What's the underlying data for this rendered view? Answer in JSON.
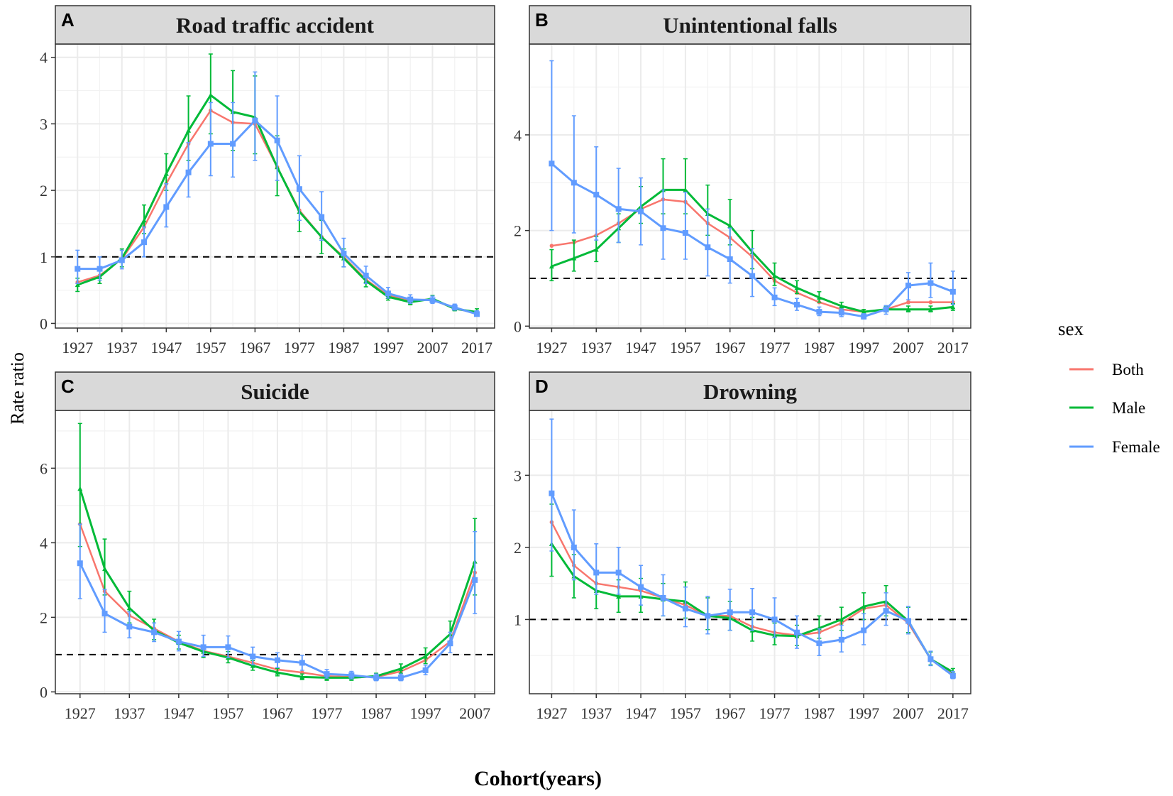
{
  "figure": {
    "ylabel": "Rate ratio",
    "xlabel": "Cohort(years)",
    "legend": {
      "title": "sex",
      "entries": [
        "Both",
        "Male",
        "Female"
      ]
    },
    "colors": {
      "Both": "#F8766D",
      "Male": "#00BA38",
      "Female": "#619CFF",
      "reference_line": "#000000",
      "strip_bg": "#d9d9d9",
      "grid": "#ebebeb"
    }
  },
  "chart_data": [
    {
      "panel": "A",
      "type": "line",
      "title": "Road traffic accident",
      "x": [
        1927,
        1932,
        1937,
        1942,
        1947,
        1952,
        1957,
        1962,
        1967,
        1972,
        1977,
        1982,
        1987,
        1992,
        1997,
        2002,
        2007,
        2012,
        2017
      ],
      "xticks": [
        1927,
        1937,
        1947,
        1957,
        1967,
        1977,
        1987,
        1997,
        2007,
        2017
      ],
      "xticklabels": [
        "1927",
        "1937",
        "1947",
        "1957",
        "1967",
        "1977",
        "1987",
        "1997",
        "2007",
        "2017"
      ],
      "yticks": [
        0,
        1,
        2,
        3,
        4
      ],
      "yticklabels": [
        "0",
        "1",
        "2",
        "3",
        "4"
      ],
      "xlim": [
        1922,
        2021
      ],
      "ylim": [
        -0.07,
        4.2
      ],
      "reference_y": 1,
      "series": [
        {
          "name": "Both",
          "values": [
            0.62,
            0.72,
            0.97,
            1.45,
            2.1,
            2.7,
            3.2,
            3.02,
            3.0,
            2.35,
            1.7,
            1.3,
            1.0,
            0.66,
            0.42,
            0.35,
            0.36,
            0.22,
            0.16
          ]
        },
        {
          "name": "Male",
          "values": [
            0.58,
            0.7,
            0.98,
            1.55,
            2.25,
            2.9,
            3.43,
            3.18,
            3.1,
            2.35,
            1.68,
            1.3,
            0.98,
            0.64,
            0.4,
            0.32,
            0.37,
            0.22,
            0.17
          ],
          "ci_low": [
            0.48,
            0.6,
            0.85,
            1.35,
            2.0,
            2.45,
            2.85,
            2.6,
            2.55,
            1.92,
            1.38,
            1.05,
            0.85,
            0.55,
            0.35,
            0.28,
            0.32,
            0.19,
            0.13
          ],
          "ci_high": [
            0.68,
            0.8,
            1.12,
            1.78,
            2.55,
            3.42,
            4.05,
            3.8,
            3.72,
            2.82,
            2.02,
            1.55,
            1.12,
            0.75,
            0.48,
            0.38,
            0.42,
            0.27,
            0.22
          ]
        },
        {
          "name": "Female",
          "values": [
            0.82,
            0.82,
            0.95,
            1.22,
            1.75,
            2.27,
            2.7,
            2.7,
            3.05,
            2.75,
            2.02,
            1.6,
            1.05,
            0.72,
            0.45,
            0.36,
            0.35,
            0.24,
            0.14
          ],
          "ci_low": [
            0.6,
            0.65,
            0.82,
            1.0,
            1.45,
            1.9,
            2.22,
            2.2,
            2.45,
            2.15,
            1.55,
            1.25,
            0.85,
            0.6,
            0.38,
            0.3,
            0.3,
            0.2,
            0.11
          ],
          "ci_high": [
            1.1,
            1.0,
            1.1,
            1.45,
            2.1,
            2.72,
            3.32,
            3.32,
            3.78,
            3.42,
            2.52,
            1.98,
            1.28,
            0.86,
            0.54,
            0.43,
            0.41,
            0.29,
            0.19
          ]
        }
      ]
    },
    {
      "panel": "B",
      "type": "line",
      "title": "Unintentional falls",
      "x": [
        1927,
        1932,
        1937,
        1942,
        1947,
        1952,
        1957,
        1962,
        1967,
        1972,
        1977,
        1982,
        1987,
        1992,
        1997,
        2002,
        2007,
        2012,
        2017
      ],
      "xticks": [
        1927,
        1937,
        1947,
        1957,
        1967,
        1977,
        1987,
        1997,
        2007,
        2017
      ],
      "xticklabels": [
        "1927",
        "1937",
        "1947",
        "1957",
        "1967",
        "1977",
        "1987",
        "1997",
        "2007",
        "2017"
      ],
      "yticks": [
        0,
        2,
        4
      ],
      "yticklabels": [
        "0",
        "2",
        "4"
      ],
      "xlim": [
        1922,
        2021
      ],
      "ylim": [
        -0.04,
        5.9
      ],
      "reference_y": 1,
      "series": [
        {
          "name": "Both",
          "values": [
            1.68,
            1.75,
            1.9,
            2.15,
            2.45,
            2.65,
            2.6,
            2.15,
            1.85,
            1.45,
            0.95,
            0.7,
            0.5,
            0.35,
            0.3,
            0.35,
            0.5,
            0.5,
            0.5
          ]
        },
        {
          "name": "Male",
          "values": [
            1.25,
            1.42,
            1.6,
            2.05,
            2.5,
            2.85,
            2.85,
            2.35,
            2.1,
            1.55,
            1.05,
            0.8,
            0.6,
            0.42,
            0.3,
            0.35,
            0.35,
            0.35,
            0.4
          ],
          "ci_low": [
            0.95,
            1.15,
            1.35,
            1.75,
            2.15,
            2.35,
            2.35,
            1.9,
            1.7,
            1.2,
            0.85,
            0.68,
            0.5,
            0.36,
            0.26,
            0.3,
            0.3,
            0.3,
            0.33
          ],
          "ci_high": [
            1.6,
            1.8,
            1.88,
            2.35,
            2.92,
            3.5,
            3.5,
            2.95,
            2.65,
            2.0,
            1.32,
            0.95,
            0.72,
            0.5,
            0.35,
            0.42,
            0.42,
            0.42,
            0.47
          ]
        },
        {
          "name": "Female",
          "values": [
            3.4,
            3.0,
            2.75,
            2.45,
            2.4,
            2.05,
            1.95,
            1.65,
            1.4,
            1.05,
            0.6,
            0.45,
            0.3,
            0.28,
            0.2,
            0.35,
            0.85,
            0.9,
            0.72
          ],
          "ci_low": [
            2.0,
            1.95,
            1.8,
            1.75,
            1.7,
            1.4,
            1.4,
            1.05,
            0.9,
            0.62,
            0.43,
            0.33,
            0.22,
            0.2,
            0.15,
            0.25,
            0.55,
            0.6,
            0.45
          ],
          "ci_high": [
            5.55,
            4.4,
            3.75,
            3.3,
            3.1,
            2.85,
            2.8,
            2.45,
            2.05,
            1.62,
            0.8,
            0.58,
            0.4,
            0.36,
            0.26,
            0.43,
            1.12,
            1.32,
            1.15
          ]
        }
      ]
    },
    {
      "panel": "C",
      "type": "line",
      "title": "Suicide",
      "x": [
        1927,
        1932,
        1937,
        1942,
        1947,
        1952,
        1957,
        1962,
        1967,
        1972,
        1977,
        1982,
        1987,
        1992,
        1997,
        2002,
        2007
      ],
      "xticks": [
        1927,
        1937,
        1947,
        1957,
        1967,
        1977,
        1987,
        1997,
        2007
      ],
      "xticklabels": [
        "1927",
        "1937",
        "1947",
        "1957",
        "1967",
        "1977",
        "1987",
        "1997",
        "2007"
      ],
      "yticks": [
        0,
        2,
        4,
        6
      ],
      "yticklabels": [
        "0",
        "2",
        "4",
        "6"
      ],
      "xlim": [
        1922,
        2011
      ],
      "ylim": [
        -0.05,
        7.55
      ],
      "reference_y": 1,
      "series": [
        {
          "name": "Both",
          "values": [
            4.5,
            2.7,
            2.05,
            1.7,
            1.35,
            1.1,
            0.95,
            0.78,
            0.6,
            0.52,
            0.42,
            0.4,
            0.4,
            0.55,
            0.85,
            1.35,
            3.2
          ]
        },
        {
          "name": "Male",
          "values": [
            5.45,
            3.3,
            2.25,
            1.65,
            1.32,
            1.08,
            0.92,
            0.7,
            0.52,
            0.4,
            0.38,
            0.38,
            0.42,
            0.62,
            0.95,
            1.55,
            3.5
          ],
          "ci_low": [
            3.9,
            2.6,
            1.85,
            1.4,
            1.15,
            0.92,
            0.78,
            0.58,
            0.43,
            0.33,
            0.31,
            0.31,
            0.35,
            0.5,
            0.76,
            1.25,
            2.6
          ],
          "ci_high": [
            7.2,
            4.1,
            2.7,
            1.95,
            1.52,
            1.25,
            1.08,
            0.84,
            0.63,
            0.48,
            0.46,
            0.46,
            0.5,
            0.75,
            1.18,
            1.9,
            4.65
          ]
        },
        {
          "name": "Female",
          "values": [
            3.45,
            2.1,
            1.75,
            1.6,
            1.35,
            1.2,
            1.2,
            0.95,
            0.85,
            0.78,
            0.48,
            0.45,
            0.38,
            0.38,
            0.58,
            1.3,
            3.0
          ],
          "ci_low": [
            2.5,
            1.6,
            1.45,
            1.35,
            1.1,
            0.95,
            0.92,
            0.73,
            0.65,
            0.58,
            0.37,
            0.35,
            0.3,
            0.3,
            0.46,
            1.05,
            2.1
          ],
          "ci_high": [
            4.5,
            2.75,
            2.15,
            1.85,
            1.62,
            1.52,
            1.5,
            1.2,
            1.05,
            0.98,
            0.6,
            0.55,
            0.48,
            0.48,
            0.72,
            1.6,
            4.3
          ]
        }
      ]
    },
    {
      "panel": "D",
      "type": "line",
      "title": "Drowning",
      "x": [
        1927,
        1932,
        1937,
        1942,
        1947,
        1952,
        1957,
        1962,
        1967,
        1972,
        1977,
        1982,
        1987,
        1992,
        1997,
        2002,
        2007,
        2012,
        2017
      ],
      "xticks": [
        1927,
        1937,
        1947,
        1957,
        1967,
        1977,
        1987,
        1997,
        2007,
        2017
      ],
      "xticklabels": [
        "1927",
        "1937",
        "1947",
        "1957",
        "1967",
        "1977",
        "1987",
        "1997",
        "2007",
        "2017"
      ],
      "yticks": [
        1,
        2,
        3
      ],
      "yticklabels": [
        "1",
        "2",
        "3"
      ],
      "xlim": [
        1922,
        2021
      ],
      "ylim": [
        -0.03,
        3.9
      ],
      "reference_y": 1,
      "series": [
        {
          "name": "Both",
          "values": [
            2.35,
            1.75,
            1.5,
            1.45,
            1.4,
            1.3,
            1.2,
            1.05,
            1.05,
            0.9,
            0.82,
            0.78,
            0.82,
            0.95,
            1.15,
            1.2,
            0.95,
            0.45,
            0.25
          ]
        },
        {
          "name": "Male",
          "values": [
            2.05,
            1.6,
            1.4,
            1.32,
            1.32,
            1.28,
            1.25,
            1.05,
            1.02,
            0.85,
            0.78,
            0.77,
            0.88,
            1.0,
            1.18,
            1.25,
            0.98,
            0.45,
            0.27
          ],
          "ci_low": [
            1.6,
            1.3,
            1.15,
            1.1,
            1.1,
            1.05,
            1.02,
            0.86,
            0.85,
            0.7,
            0.65,
            0.64,
            0.74,
            0.85,
            1.0,
            1.05,
            0.82,
            0.37,
            0.22
          ],
          "ci_high": [
            2.6,
            1.9,
            1.65,
            1.55,
            1.57,
            1.5,
            1.52,
            1.3,
            1.25,
            1.03,
            0.95,
            0.92,
            1.05,
            1.17,
            1.37,
            1.47,
            1.17,
            0.55,
            0.32
          ]
        },
        {
          "name": "Female",
          "values": [
            2.75,
            2.0,
            1.65,
            1.65,
            1.45,
            1.3,
            1.15,
            1.05,
            1.1,
            1.1,
            1.0,
            0.82,
            0.67,
            0.72,
            0.85,
            1.12,
            0.98,
            0.45,
            0.22
          ],
          "ci_low": [
            1.95,
            1.55,
            1.35,
            1.35,
            1.2,
            1.05,
            0.9,
            0.8,
            0.85,
            0.85,
            0.75,
            0.6,
            0.5,
            0.55,
            0.65,
            0.92,
            0.8,
            0.36,
            0.18
          ],
          "ci_high": [
            3.78,
            2.52,
            2.05,
            2.0,
            1.75,
            1.62,
            1.45,
            1.32,
            1.42,
            1.43,
            1.3,
            1.05,
            0.87,
            0.92,
            1.08,
            1.37,
            1.18,
            0.56,
            0.28
          ]
        }
      ]
    }
  ]
}
